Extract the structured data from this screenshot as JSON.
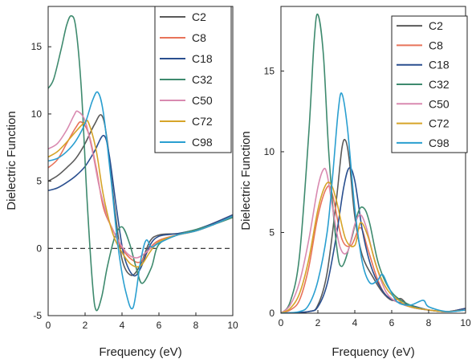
{
  "chart_data": [
    {
      "type": "line",
      "panel": "left",
      "xlabel": "Frequency (eV)",
      "ylabel": "Dielectric Function",
      "xlim": [
        0,
        10
      ],
      "ylim": [
        -5,
        18
      ],
      "xticks": [
        0,
        2,
        4,
        6,
        8,
        10
      ],
      "yticks": [
        -5,
        0,
        5,
        10,
        15
      ],
      "reference_line": {
        "y": 0,
        "style": "dashed"
      },
      "legend_position": "top-right",
      "series": [
        {
          "name": "C2",
          "color": "#5a5a5a",
          "x": [
            0,
            0.5,
            1,
            1.5,
            2,
            2.5,
            2.9,
            3.2,
            3.6,
            4,
            4.5,
            5,
            5.5,
            6,
            7,
            8,
            9,
            10
          ],
          "y": [
            5,
            5.4,
            6,
            6.7,
            7.8,
            9.2,
            9.9,
            8,
            3,
            -0.8,
            -2,
            -1.2,
            0.5,
            1,
            1.1,
            1.3,
            1.8,
            2.4
          ]
        },
        {
          "name": "C8",
          "color": "#e8735a",
          "x": [
            0,
            0.5,
            1,
            1.5,
            1.8,
            2.2,
            2.6,
            3,
            3.5,
            4,
            4.5,
            5,
            5.5,
            6,
            7,
            8,
            9,
            10
          ],
          "y": [
            6,
            6.6,
            7.8,
            9,
            9.4,
            8.5,
            6,
            3,
            1.4,
            0,
            -0.8,
            -1,
            0,
            0.6,
            1,
            1.3,
            1.9,
            2.5
          ]
        },
        {
          "name": "C18",
          "color": "#2a4f8f",
          "x": [
            0,
            0.5,
            1,
            1.5,
            2,
            2.5,
            3,
            3.3,
            3.7,
            4.1,
            4.6,
            5,
            5.5,
            6,
            7,
            8,
            9,
            10
          ],
          "y": [
            4.3,
            4.5,
            4.9,
            5.4,
            6.1,
            7.2,
            8.4,
            7,
            3,
            -0.5,
            -2,
            -1.5,
            0.2,
            0.9,
            1.1,
            1.4,
            1.9,
            2.5
          ]
        },
        {
          "name": "C32",
          "color": "#3e8a6e",
          "x": [
            0,
            0.3,
            0.7,
            1,
            1.25,
            1.5,
            1.8,
            2.1,
            2.4,
            2.6,
            2.9,
            3.2,
            3.6,
            4,
            4.4,
            4.8,
            5.1,
            5.6,
            6,
            7,
            8,
            9,
            10
          ],
          "y": [
            11.9,
            12.6,
            14.8,
            16.6,
            17.3,
            16.4,
            11.8,
            3.8,
            -2.6,
            -4.6,
            -3.6,
            -1.4,
            0.8,
            1.6,
            0.4,
            -1.6,
            -2.6,
            -1.4,
            0.3,
            1,
            1.4,
            1.8,
            2.3
          ]
        },
        {
          "name": "C50",
          "color": "#d98ab0",
          "x": [
            0,
            0.5,
            1,
            1.4,
            1.6,
            2,
            2.4,
            2.8,
            3.3,
            3.8,
            4.3,
            4.8,
            5.3,
            6,
            7,
            8,
            9,
            10
          ],
          "y": [
            7.4,
            7.8,
            8.8,
            9.9,
            10.2,
            9.5,
            7.2,
            4.4,
            2,
            0.6,
            -0.4,
            -0.7,
            -0.3,
            0.5,
            1,
            1.3,
            1.8,
            2.4
          ]
        },
        {
          "name": "C72",
          "color": "#d6a429",
          "x": [
            0,
            0.5,
            1,
            1.5,
            2,
            2.2,
            2.6,
            3,
            3.5,
            4,
            4.5,
            5,
            5.5,
            6,
            7,
            8,
            9,
            10
          ],
          "y": [
            6.8,
            7.2,
            7.9,
            8.7,
            9.4,
            9.3,
            7.3,
            3.9,
            1.1,
            -0.3,
            -1.2,
            -1.3,
            -0.3,
            0.5,
            1,
            1.3,
            1.8,
            2.4
          ]
        },
        {
          "name": "C98",
          "color": "#2a9fd0",
          "x": [
            0,
            0.5,
            1,
            1.5,
            2,
            2.4,
            2.7,
            3,
            3.4,
            3.8,
            4.2,
            4.6,
            5,
            5.3,
            5.6,
            6,
            7,
            8,
            9,
            10
          ],
          "y": [
            6.5,
            6.7,
            7.2,
            8,
            9.3,
            11,
            11.6,
            10,
            5.2,
            0,
            -3.2,
            -4.4,
            -1,
            0.6,
            0.1,
            0.4,
            1,
            1.3,
            1.8,
            2.4
          ]
        }
      ]
    },
    {
      "type": "line",
      "panel": "right",
      "xlabel": "Frequency (eV)",
      "ylabel": "Dielectric Function",
      "xlim": [
        0,
        10
      ],
      "ylim": [
        0,
        19
      ],
      "xticks": [
        0,
        2,
        4,
        6,
        8,
        10
      ],
      "yticks": [
        0,
        5,
        10,
        15
      ],
      "legend_position": "top-right",
      "series": [
        {
          "name": "C2",
          "color": "#5a5a5a",
          "x": [
            0,
            1.5,
            2,
            2.5,
            3,
            3.3,
            3.5,
            3.7,
            4,
            4.4,
            5,
            5.5,
            6,
            6.5,
            7,
            8,
            9,
            10
          ],
          "y": [
            0,
            0.1,
            0.5,
            2.5,
            7,
            10.2,
            10.7,
            9.5,
            6,
            3.6,
            2.2,
            1.3,
            0.8,
            0.9,
            0.4,
            0.2,
            0.1,
            0.3
          ]
        },
        {
          "name": "C8",
          "color": "#e8735a",
          "x": [
            0,
            0.5,
            1,
            1.5,
            2,
            2.5,
            2.8,
            3.3,
            3.8,
            4.3,
            4.7,
            5.2,
            5.7,
            6.5,
            7,
            8,
            9,
            10
          ],
          "y": [
            0,
            0.2,
            0.8,
            2.8,
            6,
            7.8,
            7.3,
            4.6,
            4.2,
            5.3,
            4,
            2.2,
            1.1,
            0.6,
            0.4,
            0.2,
            0.1,
            0.3
          ]
        },
        {
          "name": "C18",
          "color": "#2a4f8f",
          "x": [
            0,
            1.5,
            2,
            2.5,
            3,
            3.4,
            3.7,
            4,
            4.4,
            4.8,
            5.2,
            5.7,
            6.3,
            7,
            8,
            9,
            10
          ],
          "y": [
            0,
            0.1,
            0.4,
            1.8,
            4.8,
            7.8,
            9,
            8.2,
            5.2,
            3.2,
            2,
            1.1,
            0.7,
            0.5,
            0.2,
            0.1,
            0.3
          ]
        },
        {
          "name": "C32",
          "color": "#3e8a6e",
          "x": [
            0,
            0.5,
            1,
            1.5,
            1.8,
            2,
            2.3,
            2.6,
            3,
            3.3,
            3.8,
            4.2,
            4.5,
            4.8,
            5.3,
            6,
            7,
            8,
            9,
            10
          ],
          "y": [
            0,
            0.7,
            3.5,
            11,
            16.9,
            18.5,
            16,
            9.8,
            4.3,
            2.9,
            4.5,
            6.3,
            6.5,
            5.6,
            3,
            1.3,
            0.5,
            0.2,
            0.1,
            0.2
          ]
        },
        {
          "name": "C50",
          "color": "#d98ab0",
          "x": [
            0,
            0.5,
            1,
            1.5,
            2,
            2.3,
            2.5,
            2.8,
            3.2,
            3.6,
            4,
            4.3,
            4.6,
            5,
            5.5,
            6,
            7,
            8,
            9,
            10
          ],
          "y": [
            0,
            0.5,
            1.9,
            4.5,
            7.8,
            8.9,
            8.6,
            6.5,
            4.1,
            3.8,
            5.5,
            6.1,
            5.4,
            3.6,
            1.8,
            0.9,
            0.4,
            0.2,
            0.1,
            0.2
          ]
        },
        {
          "name": "C72",
          "color": "#d6a429",
          "x": [
            0,
            0.5,
            1,
            1.5,
            2,
            2.4,
            2.7,
            3,
            3.5,
            4,
            4.3,
            4.7,
            5.2,
            5.8,
            6.5,
            7,
            8,
            9,
            10
          ],
          "y": [
            0,
            0.3,
            1.2,
            3.3,
            6.4,
            7.9,
            8,
            7,
            4.6,
            4.2,
            5.6,
            4.8,
            2.8,
            1.4,
            0.7,
            0.4,
            0.2,
            0.1,
            0.2
          ]
        },
        {
          "name": "C98",
          "color": "#2a9fd0",
          "x": [
            0,
            1,
            1.5,
            2,
            2.5,
            2.8,
            3.1,
            3.3,
            3.6,
            4,
            4.4,
            4.8,
            5.2,
            5.5,
            5.8,
            6.3,
            7,
            7.7,
            8,
            9,
            10
          ],
          "y": [
            0,
            0.1,
            0.5,
            2,
            5,
            8.5,
            12.5,
            13.6,
            11.5,
            6.5,
            3.2,
            1.9,
            2,
            2.4,
            1.7,
            0.7,
            0.5,
            0.8,
            0.4,
            0.1,
            0.2
          ]
        }
      ]
    }
  ]
}
